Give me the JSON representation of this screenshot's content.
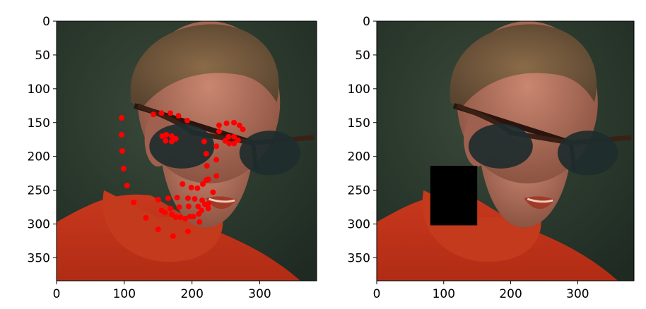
{
  "chart_data": [
    {
      "type": "scatter",
      "panel": "left",
      "image_content": "face-wearing-sunglasses-with-landmarks",
      "xlim": [
        0,
        384
      ],
      "ylim": [
        384,
        0
      ],
      "x_ticks": [
        0,
        100,
        200,
        300
      ],
      "y_ticks": [
        0,
        50,
        100,
        150,
        200,
        250,
        300,
        350
      ],
      "marker_color": "#ff0000",
      "points": [
        [
          96,
          143
        ],
        [
          96,
          168
        ],
        [
          97,
          192
        ],
        [
          99,
          218
        ],
        [
          104,
          243
        ],
        [
          114,
          268
        ],
        [
          132,
          291
        ],
        [
          150,
          308
        ],
        [
          172,
          318
        ],
        [
          194,
          311
        ],
        [
          211,
          297
        ],
        [
          224,
          277
        ],
        [
          231,
          253
        ],
        [
          236,
          229
        ],
        [
          236,
          205
        ],
        [
          236,
          185
        ],
        [
          240,
          163
        ],
        [
          143,
          138
        ],
        [
          155,
          136
        ],
        [
          168,
          136
        ],
        [
          180,
          140
        ],
        [
          193,
          147
        ],
        [
          240,
          154
        ],
        [
          251,
          151
        ],
        [
          262,
          150
        ],
        [
          270,
          154
        ],
        [
          275,
          160
        ],
        [
          218,
          178
        ],
        [
          221,
          196
        ],
        [
          222,
          214
        ],
        [
          224,
          234
        ],
        [
          186,
          241
        ],
        [
          199,
          246
        ],
        [
          208,
          247
        ],
        [
          216,
          241
        ],
        [
          221,
          235
        ],
        [
          156,
          170
        ],
        [
          162,
          168
        ],
        [
          170,
          170
        ],
        [
          176,
          174
        ],
        [
          170,
          178
        ],
        [
          161,
          177
        ],
        [
          249,
          177
        ],
        [
          254,
          171
        ],
        [
          262,
          171
        ],
        [
          268,
          176
        ],
        [
          262,
          181
        ],
        [
          255,
          181
        ],
        [
          150,
          264
        ],
        [
          165,
          262
        ],
        [
          178,
          261
        ],
        [
          194,
          262
        ],
        [
          204,
          263
        ],
        [
          215,
          265
        ],
        [
          224,
          270
        ],
        [
          214,
          280
        ],
        [
          202,
          289
        ],
        [
          190,
          292
        ],
        [
          176,
          290
        ],
        [
          160,
          283
        ],
        [
          155,
          280
        ],
        [
          168,
          277
        ],
        [
          181,
          275
        ],
        [
          195,
          274
        ],
        [
          209,
          274
        ],
        [
          219,
          271
        ],
        [
          210,
          285
        ],
        [
          197,
          289
        ],
        [
          183,
          290
        ],
        [
          170,
          286
        ]
      ]
    },
    {
      "type": "image",
      "panel": "right",
      "image_content": "face-wearing-sunglasses-with-black-occlusion-box",
      "xlim": [
        0,
        384
      ],
      "ylim": [
        384,
        0
      ],
      "x_ticks": [
        0,
        100,
        200,
        300
      ],
      "y_ticks": [
        0,
        50,
        100,
        150,
        200,
        250,
        300,
        350
      ],
      "occlusion_box": {
        "x0": 80,
        "y0": 214,
        "x1": 150,
        "y1": 302,
        "color": "#000000"
      }
    }
  ]
}
